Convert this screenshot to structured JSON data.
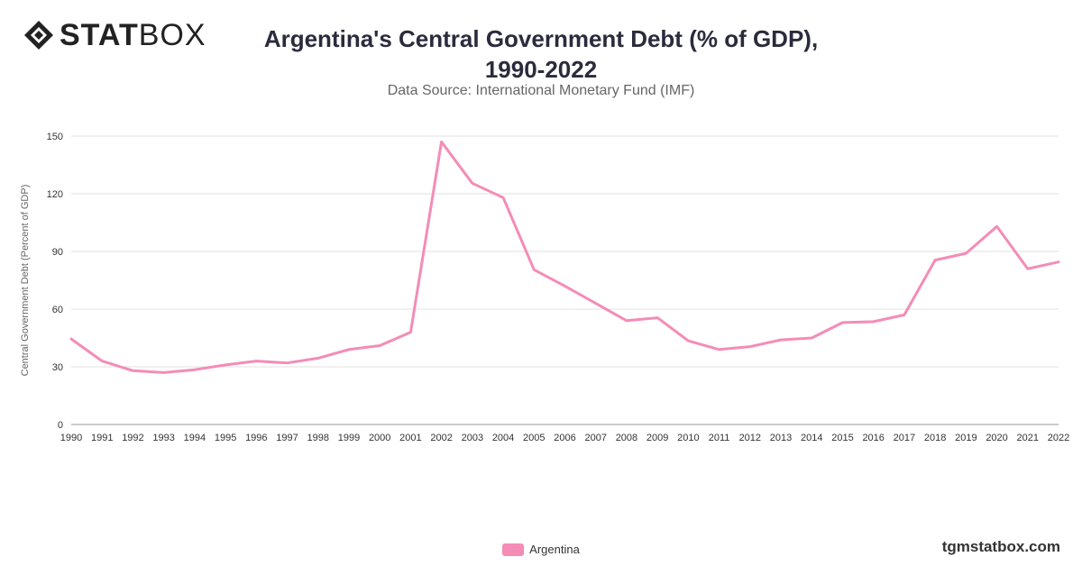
{
  "header": {
    "logo_bold": "STAT",
    "logo_light": "BOX",
    "site": "tgmstatbox.com"
  },
  "colors": {
    "series": "#f48cb6",
    "grid": "#e2e2e2",
    "axis_text": "#333333",
    "ylabel_text": "#666666",
    "logo": "#222222"
  },
  "chart_data": {
    "type": "line",
    "title_line1": "Argentina's Central Government Debt (% of GDP),",
    "title_line2": "1990-2022",
    "subtitle": "Data Source: International Monetary Fund (IMF)",
    "xlabel": "",
    "ylabel": "Central Government Debt (Percent of GDP)",
    "ylim": [
      0,
      150
    ],
    "yticks": [
      0,
      30,
      60,
      90,
      120,
      150
    ],
    "grid": true,
    "legend_placement": "bottom-center",
    "categories": [
      "1990",
      "1991",
      "1992",
      "1993",
      "1994",
      "1995",
      "1996",
      "1997",
      "1998",
      "1999",
      "2000",
      "2001",
      "2002",
      "2003",
      "2004",
      "2005",
      "2006",
      "2007",
      "2008",
      "2009",
      "2010",
      "2011",
      "2012",
      "2013",
      "2014",
      "2015",
      "2016",
      "2017",
      "2018",
      "2019",
      "2020",
      "2021",
      "2022"
    ],
    "series": [
      {
        "name": "Argentina",
        "values": [
          44.5,
          33,
          28,
          27,
          28.5,
          31,
          33,
          32,
          34.5,
          39,
          41,
          48,
          147,
          125.5,
          118,
          80.5,
          72,
          63,
          54,
          55.5,
          43.5,
          39,
          40.5,
          44,
          45,
          53,
          53.5,
          57,
          85.5,
          89,
          103,
          81,
          84.5
        ]
      }
    ]
  }
}
